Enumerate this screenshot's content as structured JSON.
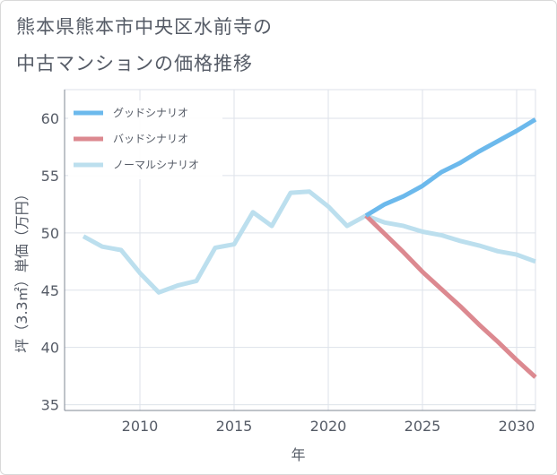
{
  "title": {
    "line1": "熊本県熊本市中央区水前寺の",
    "line2": "中古マンションの価格推移"
  },
  "colors": {
    "good": "#6cb9ec",
    "bad": "#dc8990",
    "normal": "#bcdfee",
    "grid": "#dde2ea",
    "axis": "#7f8793"
  },
  "chart_data": {
    "type": "line",
    "title": "熊本県熊本市中央区水前寺の中古マンションの価格推移",
    "xlabel": "年",
    "ylabel": "坪（3.3㎡）単価（万円）",
    "xlim": [
      2006,
      2031
    ],
    "ylim": [
      34.5,
      62.5
    ],
    "xticks": [
      2010,
      2015,
      2020,
      2025,
      2030
    ],
    "yticks": [
      35,
      40,
      45,
      50,
      55,
      60
    ],
    "grid": true,
    "legend_position": "top-left",
    "series": [
      {
        "key": "good",
        "name": "グッドシナリオ",
        "x": [
          2022,
          2023,
          2024,
          2025,
          2026,
          2027,
          2028,
          2029,
          2030,
          2031
        ],
        "y": [
          51.5,
          52.5,
          53.2,
          54.1,
          55.3,
          56.1,
          57.1,
          58.0,
          58.9,
          59.9
        ]
      },
      {
        "key": "bad",
        "name": "バッドシナリオ",
        "x": [
          2022,
          2023,
          2024,
          2025,
          2026,
          2027,
          2028,
          2029,
          2030,
          2031
        ],
        "y": [
          51.5,
          49.9,
          48.3,
          46.6,
          45.1,
          43.6,
          42.0,
          40.5,
          38.9,
          37.4
        ]
      },
      {
        "key": "normal",
        "name": "ノーマルシナリオ",
        "x": [
          2007,
          2008,
          2009,
          2010,
          2011,
          2012,
          2013,
          2014,
          2015,
          2016,
          2017,
          2018,
          2019,
          2020,
          2021,
          2022,
          2023,
          2024,
          2025,
          2026,
          2027,
          2028,
          2029,
          2030,
          2031
        ],
        "y": [
          49.7,
          48.8,
          48.5,
          46.5,
          44.8,
          45.4,
          45.8,
          48.7,
          49.0,
          51.8,
          50.6,
          53.5,
          53.6,
          52.3,
          50.6,
          51.5,
          50.9,
          50.6,
          50.1,
          49.8,
          49.3,
          48.9,
          48.4,
          48.1,
          47.5
        ]
      }
    ]
  }
}
